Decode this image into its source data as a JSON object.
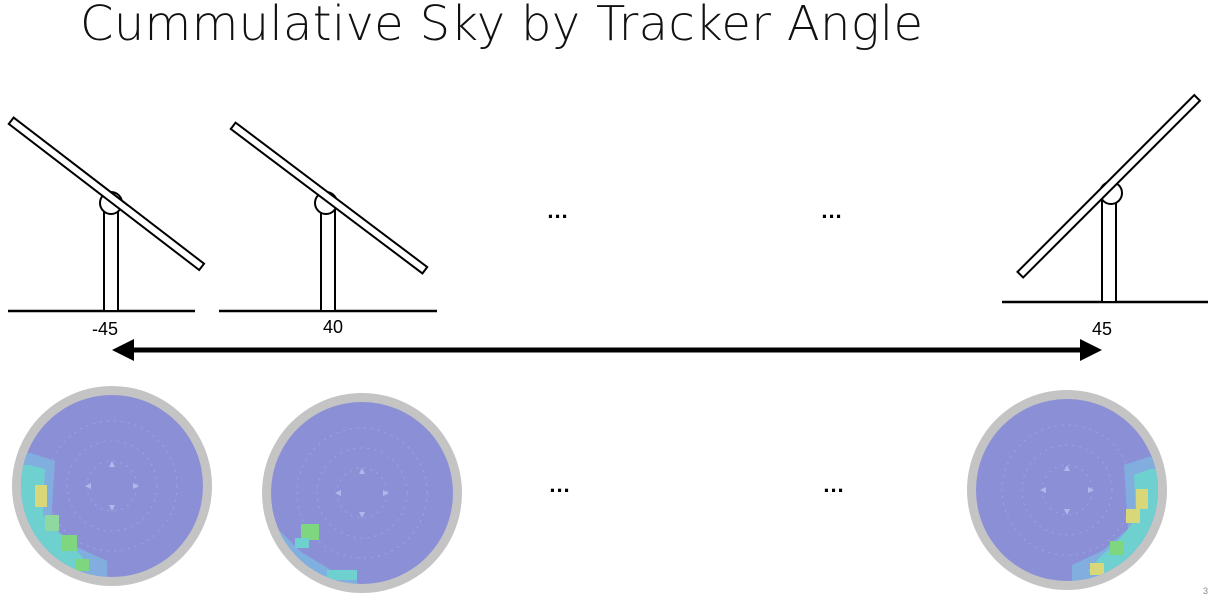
{
  "title": "Cummulative Sky by Tracker Angle",
  "trackers": [
    {
      "angle_label": "-45"
    },
    {
      "angle_label": "40"
    },
    {
      "angle_label": "45"
    }
  ],
  "ellipsis": "...",
  "colors": {
    "sky_base": "#8b8fd6",
    "sky_ring": "#c4c4c4",
    "low": "#7fb0e0",
    "mid": "#6fd0d0",
    "high": "#7ed67e",
    "peak": "#d8d87a"
  },
  "page_number": "3"
}
